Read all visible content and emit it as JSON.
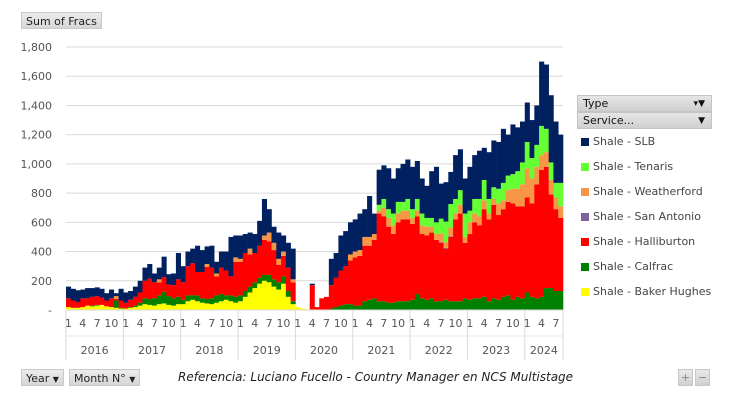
{
  "value_button": "Sum of Fracs",
  "filters": {
    "type_label": "Type",
    "service_label": "Service...",
    "year_label": "Year",
    "month_label": "Month N°",
    "plus": "+",
    "minus": "−"
  },
  "reference": "Referencia:  Luciano Fucello - Country Manager en NCS Multistage",
  "chart_data": {
    "type": "bar",
    "stacked": true,
    "title": "",
    "ylabel": "Sum of Fracs",
    "xlabel": "",
    "ylim": [
      0,
      1800
    ],
    "yticks": [
      0,
      200,
      400,
      600,
      800,
      1000,
      1200,
      1400,
      1600,
      1800
    ],
    "ytick_labels": [
      "-",
      "200",
      "400",
      "600",
      "800",
      "1,000",
      "1,200",
      "1,400",
      "1,600",
      "1,800"
    ],
    "grid": true,
    "legend_position": "right",
    "years": [
      "2016",
      "2017",
      "2018",
      "2019",
      "2020",
      "2021",
      "2022",
      "2023",
      "2024"
    ],
    "month_ticks": [
      "1",
      "4",
      "7",
      "10"
    ],
    "months_in_last_year": 8,
    "series": [
      {
        "name": "Shale - Baker Hughes",
        "color": "#FFFF00",
        "values": [
          20,
          15,
          15,
          20,
          30,
          25,
          30,
          35,
          25,
          20,
          15,
          10,
          10,
          15,
          20,
          30,
          40,
          35,
          30,
          40,
          45,
          35,
          30,
          40,
          40,
          60,
          70,
          60,
          50,
          45,
          40,
          50,
          60,
          70,
          60,
          50,
          60,
          90,
          120,
          150,
          180,
          200,
          190,
          160,
          140,
          180,
          90,
          40,
          20,
          10,
          5,
          0,
          0,
          0,
          0,
          0,
          0,
          0,
          0,
          0,
          0,
          0,
          0,
          0,
          0,
          0,
          0,
          0,
          0,
          0,
          0,
          0,
          0,
          0,
          0,
          0,
          0,
          0,
          0,
          0,
          0,
          0,
          0,
          0,
          0,
          0,
          0,
          0,
          0,
          0,
          0,
          0,
          0,
          0,
          0,
          0,
          0,
          0,
          0,
          0,
          0,
          0,
          0,
          0
        ]
      },
      {
        "name": "Shale - Calfrac",
        "color": "#008000",
        "values": [
          0,
          0,
          0,
          0,
          0,
          5,
          5,
          0,
          0,
          0,
          50,
          5,
          0,
          5,
          10,
          20,
          40,
          40,
          50,
          60,
          80,
          60,
          50,
          50,
          30,
          40,
          30,
          40,
          30,
          30,
          40,
          50,
          50,
          30,
          40,
          40,
          40,
          40,
          40,
          40,
          40,
          40,
          50,
          50,
          50,
          50,
          40,
          20,
          0,
          0,
          0,
          0,
          0,
          0,
          0,
          10,
          20,
          30,
          40,
          40,
          30,
          30,
          60,
          70,
          80,
          60,
          60,
          50,
          50,
          60,
          60,
          60,
          70,
          110,
          80,
          70,
          80,
          60,
          60,
          70,
          60,
          60,
          60,
          80,
          70,
          80,
          80,
          90,
          60,
          80,
          70,
          90,
          100,
          70,
          90,
          80,
          120,
          90,
          80,
          90,
          150,
          150,
          130,
          130
        ]
      },
      {
        "name": "Shale - Halliburton",
        "color": "#FF0000",
        "values": [
          60,
          50,
          40,
          60,
          50,
          60,
          60,
          50,
          40,
          60,
          10,
          50,
          40,
          50,
          60,
          70,
          120,
          140,
          110,
          90,
          100,
          80,
          90,
          120,
          120,
          200,
          220,
          160,
          180,
          220,
          210,
          130,
          180,
          170,
          130,
          240,
          230,
          260,
          220,
          200,
          220,
          240,
          230,
          200,
          120,
          140,
          160,
          130,
          0,
          0,
          0,
          170,
          20,
          80,
          90,
          160,
          200,
          240,
          260,
          300,
          330,
          340,
          380,
          370,
          400,
          600,
          580,
          520,
          470,
          540,
          560,
          560,
          520,
          530,
          440,
          440,
          450,
          420,
          400,
          350,
          440,
          560,
          600,
          380,
          450,
          520,
          500,
          600,
          560,
          640,
          580,
          600,
          640,
          660,
          620,
          630,
          650,
          640,
          780,
          870,
          830,
          640,
          560,
          500
        ]
      },
      {
        "name": "Shale - San Antonio",
        "color": "#8064A2",
        "values": [
          0,
          0,
          0,
          0,
          0,
          0,
          0,
          0,
          0,
          0,
          0,
          0,
          0,
          0,
          0,
          0,
          0,
          0,
          0,
          0,
          0,
          0,
          0,
          0,
          0,
          0,
          0,
          0,
          0,
          0,
          0,
          0,
          0,
          0,
          0,
          0,
          0,
          0,
          0,
          0,
          0,
          0,
          0,
          0,
          0,
          0,
          0,
          0,
          0,
          0,
          0,
          0,
          0,
          0,
          0,
          0,
          0,
          0,
          0,
          0,
          0,
          0,
          0,
          0,
          0,
          0,
          0,
          0,
          0,
          0,
          0,
          0,
          0,
          0,
          0,
          0,
          0,
          0,
          5,
          5,
          5,
          0,
          0,
          0,
          0,
          0,
          0,
          0,
          0,
          0,
          0,
          0,
          0,
          0,
          0,
          0,
          0,
          0,
          0,
          0,
          0,
          0,
          0,
          0
        ]
      },
      {
        "name": "Shale - Weatherford",
        "color": "#F79646",
        "values": [
          0,
          0,
          0,
          0,
          0,
          0,
          0,
          0,
          0,
          0,
          20,
          0,
          0,
          0,
          0,
          0,
          0,
          0,
          0,
          20,
          0,
          0,
          0,
          0,
          0,
          0,
          0,
          0,
          0,
          20,
          0,
          20,
          0,
          0,
          0,
          30,
          20,
          0,
          40,
          0,
          0,
          30,
          60,
          50,
          40,
          30,
          0,
          20,
          0,
          0,
          0,
          0,
          0,
          0,
          0,
          0,
          0,
          0,
          0,
          40,
          40,
          40,
          60,
          60,
          40,
          20,
          60,
          60,
          60,
          60,
          60,
          60,
          40,
          40,
          60,
          60,
          40,
          40,
          60,
          40,
          60,
          40,
          60,
          40,
          80,
          60,
          60,
          60,
          40,
          40,
          80,
          60,
          80,
          100,
          120,
          150,
          200,
          170,
          120,
          100,
          100,
          100,
          80,
          80
        ]
      },
      {
        "name": "Shale - Tenaris",
        "color": "#66FF33",
        "values": [
          0,
          0,
          0,
          0,
          0,
          0,
          0,
          0,
          0,
          0,
          0,
          0,
          0,
          0,
          0,
          0,
          0,
          0,
          0,
          0,
          0,
          0,
          0,
          0,
          0,
          0,
          0,
          0,
          0,
          0,
          0,
          0,
          0,
          0,
          0,
          0,
          0,
          0,
          0,
          0,
          0,
          0,
          0,
          0,
          0,
          0,
          0,
          0,
          0,
          0,
          0,
          0,
          0,
          0,
          0,
          0,
          0,
          0,
          0,
          0,
          0,
          0,
          0,
          0,
          0,
          40,
          60,
          60,
          80,
          80,
          60,
          80,
          60,
          80,
          80,
          60,
          60,
          80,
          100,
          140,
          160,
          100,
          100,
          160,
          80,
          100,
          120,
          140,
          100,
          80,
          100,
          120,
          100,
          100,
          120,
          150,
          180,
          140,
          150,
          200,
          160,
          120,
          100,
          160
        ]
      },
      {
        "name": "Shale - SLB",
        "color": "#002060",
        "values": [
          80,
          80,
          80,
          60,
          70,
          60,
          60,
          60,
          50,
          60,
          20,
          80,
          70,
          60,
          70,
          80,
          90,
          100,
          60,
          80,
          140,
          70,
          80,
          180,
          110,
          100,
          100,
          180,
          150,
          120,
          150,
          80,
          110,
          130,
          270,
          150,
          160,
          130,
          110,
          130,
          170,
          250,
          160,
          110,
          180,
          110,
          170,
          210,
          0,
          0,
          0,
          10,
          0,
          0,
          0,
          180,
          170,
          240,
          240,
          220,
          220,
          250,
          190,
          280,
          140,
          240,
          230,
          280,
          240,
          230,
          260,
          270,
          290,
          260,
          240,
          220,
          320,
          380,
          240,
          270,
          220,
          300,
          280,
          240,
          300,
          300,
          330,
          220,
          320,
          320,
          320,
          370,
          280,
          340,
          300,
          280,
          270,
          260,
          270,
          440,
          440,
          460,
          420,
          330
        ]
      }
    ]
  }
}
